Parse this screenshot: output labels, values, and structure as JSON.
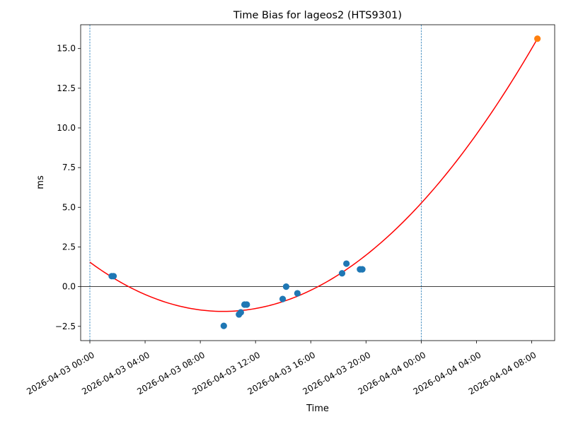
{
  "chart_data": {
    "type": "scatter",
    "title": "Time Bias for lageos2 (HTS9301)",
    "xlabel": "Time",
    "ylabel": "ms",
    "x_type": "datetime",
    "xlim": [
      "2026-04-02T23:20",
      "2026-04-04T09:40"
    ],
    "ylim": [
      -3.4,
      16.5
    ],
    "x_ticks": [
      {
        "value": "2026-04-03T00:00",
        "label": "2026-04-03 00:00"
      },
      {
        "value": "2026-04-03T04:00",
        "label": "2026-04-03 04:00"
      },
      {
        "value": "2026-04-03T08:00",
        "label": "2026-04-03 08:00"
      },
      {
        "value": "2026-04-03T12:00",
        "label": "2026-04-03 12:00"
      },
      {
        "value": "2026-04-03T16:00",
        "label": "2026-04-03 16:00"
      },
      {
        "value": "2026-04-03T20:00",
        "label": "2026-04-03 20:00"
      },
      {
        "value": "2026-04-04T00:00",
        "label": "2026-04-04 00:00"
      },
      {
        "value": "2026-04-04T04:00",
        "label": "2026-04-04 04:00"
      },
      {
        "value": "2026-04-04T08:00",
        "label": "2026-04-04 08:00"
      }
    ],
    "y_ticks": [
      {
        "value": -2.5,
        "label": "−2.5"
      },
      {
        "value": 0.0,
        "label": "0.0"
      },
      {
        "value": 2.5,
        "label": "2.5"
      },
      {
        "value": 5.0,
        "label": "5.0"
      },
      {
        "value": 7.5,
        "label": "7.5"
      },
      {
        "value": 10.0,
        "label": "10.0"
      },
      {
        "value": 12.5,
        "label": "12.5"
      },
      {
        "value": 15.0,
        "label": "15.0"
      }
    ],
    "series": [
      {
        "type": "scatter",
        "color": "#1f77b4",
        "points": [
          {
            "x": "2026-04-03T01:35",
            "y": 0.66
          },
          {
            "x": "2026-04-03T01:43",
            "y": 0.66
          },
          {
            "x": "2026-04-03T09:42",
            "y": -2.47
          },
          {
            "x": "2026-04-03T10:48",
            "y": -1.75
          },
          {
            "x": "2026-04-03T10:56",
            "y": -1.62
          },
          {
            "x": "2026-04-03T11:12",
            "y": -1.13
          },
          {
            "x": "2026-04-03T11:22",
            "y": -1.13
          },
          {
            "x": "2026-04-03T13:58",
            "y": -0.78
          },
          {
            "x": "2026-04-03T14:13",
            "y": 0.0
          },
          {
            "x": "2026-04-03T15:02",
            "y": -0.42
          },
          {
            "x": "2026-04-03T18:16",
            "y": 0.84
          },
          {
            "x": "2026-04-03T18:35",
            "y": 1.45
          },
          {
            "x": "2026-04-03T19:34",
            "y": 1.09
          },
          {
            "x": "2026-04-03T19:44",
            "y": 1.09
          }
        ]
      },
      {
        "type": "scatter",
        "color": "#ff7f0e",
        "points": [
          {
            "x": "2026-04-04T08:25",
            "y": 15.62
          }
        ]
      },
      {
        "type": "line",
        "color": "#ff0000",
        "curve": "quadratic",
        "x_range": [
          "2026-04-03T00:00",
          "2026-04-04T08:25"
        ],
        "vertex": {
          "x": "2026-04-03T09:40",
          "y": -1.56
        },
        "anchor": {
          "x": "2026-04-04T08:25",
          "y": 15.62
        }
      }
    ],
    "vlines": [
      {
        "x": "2026-04-03T00:00",
        "style": "dashed",
        "color": "#1f77b4"
      },
      {
        "x": "2026-04-04T00:00",
        "style": "dashed",
        "color": "#1f77b4"
      }
    ],
    "hline": {
      "y": 0,
      "color": "#000000"
    },
    "grid": false,
    "legend": "none"
  }
}
